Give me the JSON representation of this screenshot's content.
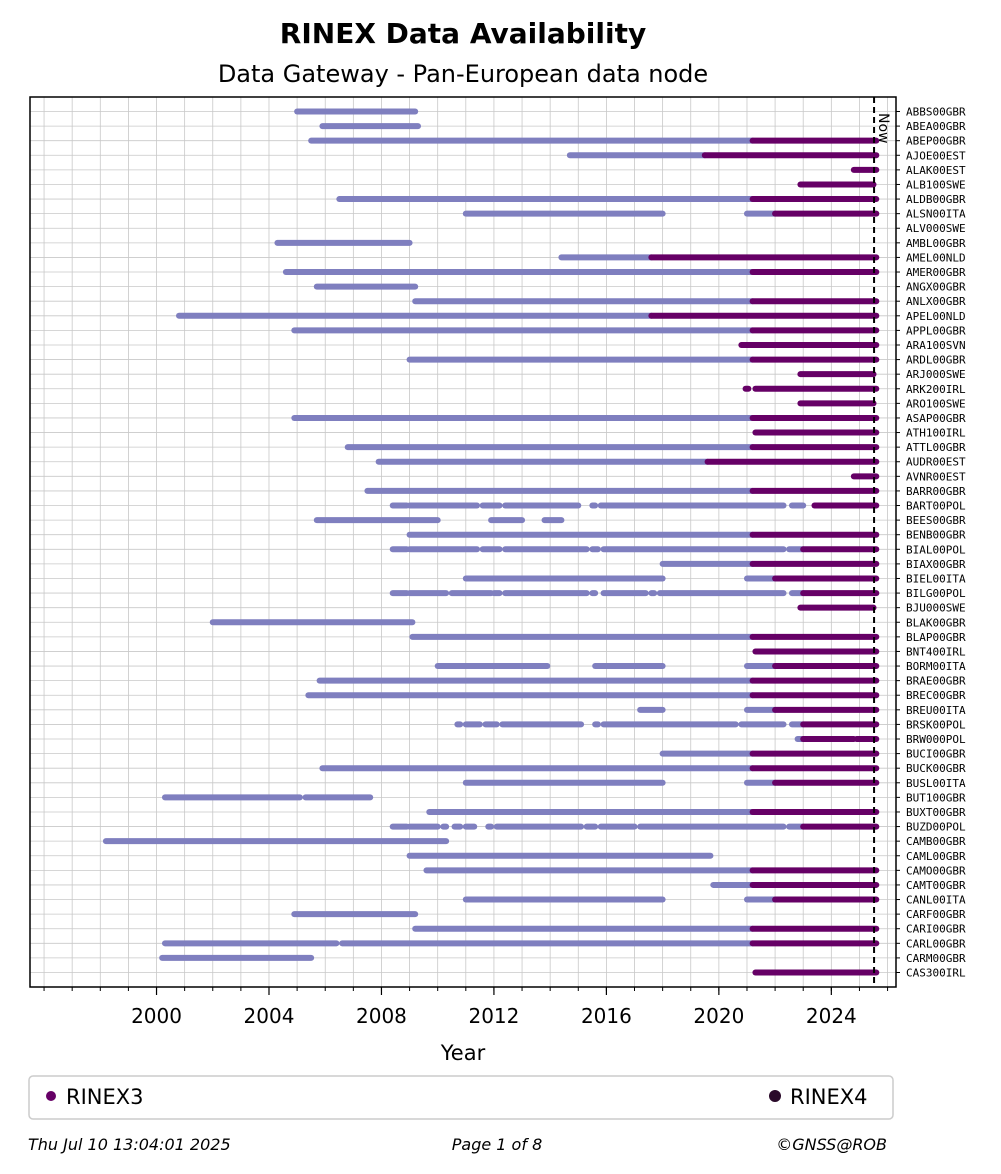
{
  "chart_data": {
    "type": "timeline",
    "title": "RINEX Data Availability",
    "subtitle": "Data Gateway - Pan-European data node",
    "xlabel": "Year",
    "xlim": [
      1995.5,
      2026.3
    ],
    "xticks": [
      2000,
      2004,
      2008,
      2012,
      2016,
      2020,
      2024
    ],
    "now": 2025.52,
    "now_label": "Now",
    "grid": true,
    "legend": {
      "placement": "bottom",
      "entries": [
        {
          "name": "RINEX3",
          "color": "#660066"
        },
        {
          "name": "RINEX4",
          "color": "#2a0a2a"
        }
      ]
    },
    "colors": {
      "rinex2": "#7f7fbf",
      "rinex3": "#660066",
      "rinex4": "#2a0a2a",
      "now": "#000000"
    },
    "stations": [
      {
        "name": "ABBS00GBR",
        "r2": [
          [
            2005.0,
            2009.2
          ]
        ],
        "r3": []
      },
      {
        "name": "ABEA00GBR",
        "r2": [
          [
            2005.9,
            2009.3
          ]
        ],
        "r3": []
      },
      {
        "name": "ABEP00GBR",
        "r2": [
          [
            2005.5,
            2021.2
          ]
        ],
        "r3": [
          [
            2021.2,
            2025.6
          ]
        ]
      },
      {
        "name": "AJOE00EST",
        "r2": [
          [
            2014.7,
            2019.5
          ]
        ],
        "r3": [
          [
            2019.5,
            2025.6
          ]
        ]
      },
      {
        "name": "ALAK00EST",
        "r2": [],
        "r3": [
          [
            2024.8,
            2025.6
          ]
        ]
      },
      {
        "name": "ALB100SWE",
        "r2": [],
        "r3": [
          [
            2022.9,
            2025.5
          ]
        ]
      },
      {
        "name": "ALDB00GBR",
        "r2": [
          [
            2006.5,
            2021.2
          ]
        ],
        "r3": [
          [
            2021.2,
            2025.6
          ]
        ]
      },
      {
        "name": "ALSN00ITA",
        "r2": [
          [
            2011.0,
            2018.0
          ],
          [
            2021.0,
            2022.0
          ]
        ],
        "r3": [
          [
            2022.0,
            2025.6
          ]
        ]
      },
      {
        "name": "ALV000SWE",
        "r2": [],
        "r3": []
      },
      {
        "name": "AMBL00GBR",
        "r2": [
          [
            2004.3,
            2009.0
          ]
        ],
        "r3": []
      },
      {
        "name": "AMEL00NLD",
        "r2": [
          [
            2014.4,
            2017.6
          ]
        ],
        "r3": [
          [
            2017.6,
            2025.6
          ]
        ]
      },
      {
        "name": "AMER00GBR",
        "r2": [
          [
            2004.6,
            2021.2
          ]
        ],
        "r3": [
          [
            2021.2,
            2025.6
          ]
        ]
      },
      {
        "name": "ANGX00GBR",
        "r2": [
          [
            2005.7,
            2009.2
          ]
        ],
        "r3": []
      },
      {
        "name": "ANLX00GBR",
        "r2": [
          [
            2009.2,
            2021.2
          ]
        ],
        "r3": [
          [
            2021.2,
            2025.6
          ]
        ]
      },
      {
        "name": "APEL00NLD",
        "r2": [
          [
            2000.8,
            2017.6
          ]
        ],
        "r3": [
          [
            2017.6,
            2025.6
          ]
        ]
      },
      {
        "name": "APPL00GBR",
        "r2": [
          [
            2004.9,
            2021.2
          ]
        ],
        "r3": [
          [
            2021.2,
            2025.6
          ]
        ]
      },
      {
        "name": "ARA100SVN",
        "r2": [],
        "r3": [
          [
            2020.8,
            2025.6
          ]
        ]
      },
      {
        "name": "ARDL00GBR",
        "r2": [
          [
            2009.0,
            2021.2
          ]
        ],
        "r3": [
          [
            2021.2,
            2025.6
          ]
        ]
      },
      {
        "name": "ARJ000SWE",
        "r2": [],
        "r3": [
          [
            2022.9,
            2025.5
          ]
        ]
      },
      {
        "name": "ARK200IRL",
        "r2": [],
        "r3": [
          [
            2020.95,
            2021.05
          ],
          [
            2021.3,
            2025.6
          ]
        ]
      },
      {
        "name": "ARO100SWE",
        "r2": [],
        "r3": [
          [
            2022.9,
            2025.5
          ]
        ]
      },
      {
        "name": "ASAP00GBR",
        "r2": [
          [
            2004.9,
            2021.2
          ]
        ],
        "r3": [
          [
            2021.2,
            2025.6
          ]
        ]
      },
      {
        "name": "ATH100IRL",
        "r2": [],
        "r3": [
          [
            2021.3,
            2025.6
          ]
        ]
      },
      {
        "name": "ATTL00GBR",
        "r2": [
          [
            2006.8,
            2021.2
          ]
        ],
        "r3": [
          [
            2021.2,
            2025.6
          ]
        ]
      },
      {
        "name": "AUDR00EST",
        "r2": [
          [
            2007.9,
            2019.6
          ]
        ],
        "r3": [
          [
            2019.6,
            2025.6
          ]
        ]
      },
      {
        "name": "AVNR00EST",
        "r2": [],
        "r3": [
          [
            2024.8,
            2025.6
          ]
        ]
      },
      {
        "name": "BARR00GBR",
        "r2": [
          [
            2007.5,
            2021.2
          ]
        ],
        "r3": [
          [
            2021.2,
            2025.6
          ]
        ]
      },
      {
        "name": "BART00POL",
        "r2": [
          [
            2008.4,
            2008.9
          ],
          [
            2009.0,
            2011.4
          ],
          [
            2011.6,
            2012.2
          ],
          [
            2012.4,
            2015.0
          ],
          [
            2015.5,
            2015.6
          ],
          [
            2015.8,
            2022.3
          ],
          [
            2022.6,
            2023.0
          ]
        ],
        "r3": [
          [
            2023.4,
            2025.6
          ]
        ]
      },
      {
        "name": "BEES00GBR",
        "r2": [
          [
            2005.7,
            2010.0
          ],
          [
            2011.9,
            2013.0
          ],
          [
            2013.8,
            2014.4
          ]
        ],
        "r3": []
      },
      {
        "name": "BENB00GBR",
        "r2": [
          [
            2009.0,
            2021.2
          ]
        ],
        "r3": [
          [
            2021.2,
            2025.6
          ]
        ]
      },
      {
        "name": "BIAL00POL",
        "r2": [
          [
            2008.4,
            2008.9
          ],
          [
            2009.0,
            2011.4
          ],
          [
            2011.6,
            2012.2
          ],
          [
            2012.4,
            2015.3
          ],
          [
            2015.5,
            2015.7
          ],
          [
            2015.9,
            2022.3
          ],
          [
            2022.5,
            2023.0
          ]
        ],
        "r3": [
          [
            2023.0,
            2025.6
          ]
        ]
      },
      {
        "name": "BIAX00GBR",
        "r2": [
          [
            2018.0,
            2021.2
          ]
        ],
        "r3": [
          [
            2021.2,
            2025.6
          ]
        ]
      },
      {
        "name": "BIEL00ITA",
        "r2": [
          [
            2011.0,
            2018.0
          ],
          [
            2021.0,
            2022.0
          ]
        ],
        "r3": [
          [
            2022.0,
            2025.6
          ]
        ]
      },
      {
        "name": "BILG00POL",
        "r2": [
          [
            2008.4,
            2008.9
          ],
          [
            2009.0,
            2010.3
          ],
          [
            2010.5,
            2011.9
          ],
          [
            2012.0,
            2012.2
          ],
          [
            2012.4,
            2015.3
          ],
          [
            2015.5,
            2015.6
          ],
          [
            2015.9,
            2017.4
          ],
          [
            2017.6,
            2017.7
          ],
          [
            2017.9,
            2022.3
          ],
          [
            2022.6,
            2023.0
          ]
        ],
        "r3": [
          [
            2023.0,
            2025.6
          ]
        ]
      },
      {
        "name": "BJU000SWE",
        "r2": [],
        "r3": [
          [
            2022.9,
            2025.5
          ]
        ]
      },
      {
        "name": "BLAK00GBR",
        "r2": [
          [
            2002.0,
            2009.1
          ]
        ],
        "r3": []
      },
      {
        "name": "BLAP00GBR",
        "r2": [
          [
            2009.1,
            2021.2
          ]
        ],
        "r3": [
          [
            2021.2,
            2025.6
          ]
        ]
      },
      {
        "name": "BNT400IRL",
        "r2": [],
        "r3": [
          [
            2021.3,
            2025.6
          ]
        ]
      },
      {
        "name": "BORM00ITA",
        "r2": [
          [
            2010.0,
            2013.9
          ],
          [
            2015.6,
            2018.0
          ],
          [
            2021.0,
            2022.0
          ]
        ],
        "r3": [
          [
            2022.0,
            2025.6
          ]
        ]
      },
      {
        "name": "BRAE00GBR",
        "r2": [
          [
            2005.8,
            2021.2
          ]
        ],
        "r3": [
          [
            2021.2,
            2025.6
          ]
        ]
      },
      {
        "name": "BREC00GBR",
        "r2": [
          [
            2005.4,
            2021.2
          ]
        ],
        "r3": [
          [
            2021.2,
            2025.6
          ]
        ]
      },
      {
        "name": "BREU00ITA",
        "r2": [
          [
            2017.2,
            2018.0
          ],
          [
            2021.0,
            2022.0
          ]
        ],
        "r3": [
          [
            2022.0,
            2025.6
          ]
        ]
      },
      {
        "name": "BRSK00POL",
        "r2": [
          [
            2010.7,
            2010.8
          ],
          [
            2011.0,
            2011.5
          ],
          [
            2011.7,
            2012.1
          ],
          [
            2012.3,
            2015.1
          ],
          [
            2015.6,
            2015.7
          ],
          [
            2015.9,
            2020.6
          ],
          [
            2020.8,
            2022.3
          ],
          [
            2022.6,
            2023.0
          ]
        ],
        "r3": [
          [
            2023.0,
            2025.6
          ]
        ]
      },
      {
        "name": "BRW000POL",
        "r2": [
          [
            2022.8,
            2023.0
          ]
        ],
        "r3": [
          [
            2023.0,
            2024.8
          ],
          [
            2024.9,
            2025.6
          ]
        ]
      },
      {
        "name": "BUCI00GBR",
        "r2": [
          [
            2018.0,
            2021.2
          ]
        ],
        "r3": [
          [
            2021.2,
            2025.6
          ]
        ]
      },
      {
        "name": "BUCK00GBR",
        "r2": [
          [
            2005.9,
            2021.2
          ]
        ],
        "r3": [
          [
            2021.2,
            2025.6
          ]
        ]
      },
      {
        "name": "BUSL00ITA",
        "r2": [
          [
            2011.0,
            2018.0
          ],
          [
            2021.0,
            2022.0
          ]
        ],
        "r3": [
          [
            2022.0,
            2025.6
          ]
        ]
      },
      {
        "name": "BUT100GBR",
        "r2": [
          [
            2000.3,
            2005.1
          ],
          [
            2005.3,
            2007.6
          ]
        ],
        "r3": []
      },
      {
        "name": "BUXT00GBR",
        "r2": [
          [
            2009.7,
            2021.2
          ]
        ],
        "r3": [
          [
            2021.2,
            2025.6
          ]
        ]
      },
      {
        "name": "BUZD00POL",
        "r2": [
          [
            2008.4,
            2008.9
          ],
          [
            2009.0,
            2010.0
          ],
          [
            2010.2,
            2010.3
          ],
          [
            2010.6,
            2010.8
          ],
          [
            2011.0,
            2011.3
          ],
          [
            2011.8,
            2011.9
          ],
          [
            2012.1,
            2015.1
          ],
          [
            2015.3,
            2015.6
          ],
          [
            2015.8,
            2017.0
          ],
          [
            2017.2,
            2022.3
          ],
          [
            2022.5,
            2023.0
          ]
        ],
        "r3": [
          [
            2023.0,
            2025.6
          ]
        ]
      },
      {
        "name": "CAMB00GBR",
        "r2": [
          [
            1998.2,
            2010.3
          ]
        ],
        "r3": []
      },
      {
        "name": "CAML00GBR",
        "r2": [
          [
            2009.0,
            2019.7
          ]
        ],
        "r3": []
      },
      {
        "name": "CAMO00GBR",
        "r2": [
          [
            2009.6,
            2021.2
          ]
        ],
        "r3": [
          [
            2021.2,
            2025.6
          ]
        ]
      },
      {
        "name": "CAMT00GBR",
        "r2": [
          [
            2019.8,
            2021.2
          ]
        ],
        "r3": [
          [
            2021.2,
            2025.6
          ]
        ]
      },
      {
        "name": "CANL00ITA",
        "r2": [
          [
            2011.0,
            2018.0
          ],
          [
            2021.0,
            2022.0
          ]
        ],
        "r3": [
          [
            2022.0,
            2025.6
          ]
        ]
      },
      {
        "name": "CARF00GBR",
        "r2": [
          [
            2004.9,
            2009.2
          ]
        ],
        "r3": []
      },
      {
        "name": "CARI00GBR",
        "r2": [
          [
            2009.2,
            2021.2
          ]
        ],
        "r3": [
          [
            2021.2,
            2025.6
          ]
        ]
      },
      {
        "name": "CARL00GBR",
        "r2": [
          [
            2000.3,
            2006.4
          ],
          [
            2006.6,
            2021.2
          ]
        ],
        "r3": [
          [
            2021.2,
            2025.6
          ]
        ]
      },
      {
        "name": "CARM00GBR",
        "r2": [
          [
            2000.2,
            2005.5
          ]
        ],
        "r3": []
      },
      {
        "name": "CAS300IRL",
        "r2": [],
        "r3": [
          [
            2021.3,
            2025.6
          ]
        ]
      }
    ]
  },
  "footer": {
    "timestamp": "Thu Jul 10 13:04:01 2025",
    "page": "Page 1 of 8",
    "credit": "©GNSS@ROB"
  }
}
